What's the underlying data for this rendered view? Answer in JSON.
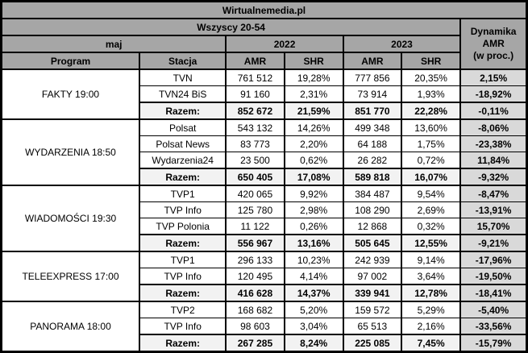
{
  "header": {
    "source": "Wirtualnemedia.pl",
    "target_group": "Wszyscy 20-54",
    "month": "maj",
    "year_2022": "2022",
    "year_2023": "2023",
    "col_program": "Program",
    "col_station": "Stacja",
    "col_amr": "AMR",
    "col_shr": "SHR",
    "dynamics": "Dynamika\nAMR\n(w proc.)"
  },
  "total_label": "Razem:",
  "colors": {
    "header_bg": "#a6a6a6",
    "total_bg": "#f2f2f2",
    "dynamics_bg": "#d9d9d9",
    "cell_bg": "#ffffff",
    "border": "#000000"
  },
  "chart_data": {
    "type": "table",
    "title": "Wirtualnemedia.pl",
    "subtitle": "Wszyscy 20-54, maj, 2022 vs 2023",
    "columns": [
      "Program",
      "Stacja",
      "AMR 2022",
      "SHR 2022",
      "AMR 2023",
      "SHR 2023",
      "Dynamika AMR (w proc.)"
    ],
    "groups": [
      {
        "program": "FAKTY 19:00",
        "rows": [
          {
            "station": "TVN",
            "amr2022": "761 512",
            "shr2022": "19,28%",
            "amr2023": "777 856",
            "shr2023": "20,35%",
            "dynamics": "2,15%"
          },
          {
            "station": "TVN24 BiS",
            "amr2022": "91 160",
            "shr2022": "2,31%",
            "amr2023": "73 914",
            "shr2023": "1,93%",
            "dynamics": "-18,92%"
          }
        ],
        "total": {
          "amr2022": "852 672",
          "shr2022": "21,59%",
          "amr2023": "851 770",
          "shr2023": "22,28%",
          "dynamics": "-0,11%"
        }
      },
      {
        "program": "WYDARZENIA 18:50",
        "rows": [
          {
            "station": "Polsat",
            "amr2022": "543 132",
            "shr2022": "14,26%",
            "amr2023": "499 348",
            "shr2023": "13,60%",
            "dynamics": "-8,06%"
          },
          {
            "station": "Polsat News",
            "amr2022": "83 773",
            "shr2022": "2,20%",
            "amr2023": "64 188",
            "shr2023": "1,75%",
            "dynamics": "-23,38%"
          },
          {
            "station": "Wydarzenia24",
            "amr2022": "23 500",
            "shr2022": "0,62%",
            "amr2023": "26 282",
            "shr2023": "0,72%",
            "dynamics": "11,84%"
          }
        ],
        "total": {
          "amr2022": "650 405",
          "shr2022": "17,08%",
          "amr2023": "589 818",
          "shr2023": "16,07%",
          "dynamics": "-9,32%"
        }
      },
      {
        "program": "WIADOMOŚCI 19:30",
        "rows": [
          {
            "station": "TVP1",
            "amr2022": "420 065",
            "shr2022": "9,92%",
            "amr2023": "384 487",
            "shr2023": "9,54%",
            "dynamics": "-8,47%"
          },
          {
            "station": "TVP Info",
            "amr2022": "125 780",
            "shr2022": "2,98%",
            "amr2023": "108 290",
            "shr2023": "2,69%",
            "dynamics": "-13,91%"
          },
          {
            "station": "TVP Polonia",
            "amr2022": "11 122",
            "shr2022": "0,26%",
            "amr2023": "12 868",
            "shr2023": "0,32%",
            "dynamics": "15,70%"
          }
        ],
        "total": {
          "amr2022": "556 967",
          "shr2022": "13,16%",
          "amr2023": "505 645",
          "shr2023": "12,55%",
          "dynamics": "-9,21%"
        }
      },
      {
        "program": "TELEEXPRESS 17:00",
        "rows": [
          {
            "station": "TVP1",
            "amr2022": "296 133",
            "shr2022": "10,23%",
            "amr2023": "242 939",
            "shr2023": "9,14%",
            "dynamics": "-17,96%"
          },
          {
            "station": "TVP Info",
            "amr2022": "120 495",
            "shr2022": "4,14%",
            "amr2023": "97 002",
            "shr2023": "3,64%",
            "dynamics": "-19,50%"
          }
        ],
        "total": {
          "amr2022": "416 628",
          "shr2022": "14,37%",
          "amr2023": "339 941",
          "shr2023": "12,78%",
          "dynamics": "-18,41%"
        }
      },
      {
        "program": "PANORAMA 18:00",
        "rows": [
          {
            "station": "TVP2",
            "amr2022": "168 682",
            "shr2022": "5,20%",
            "amr2023": "159 572",
            "shr2023": "5,29%",
            "dynamics": "-5,40%"
          },
          {
            "station": "TVP Info",
            "amr2022": "98 603",
            "shr2022": "3,04%",
            "amr2023": "65 513",
            "shr2023": "2,16%",
            "dynamics": "-33,56%"
          }
        ],
        "total": {
          "amr2022": "267 285",
          "shr2022": "8,24%",
          "amr2023": "225 085",
          "shr2023": "7,45%",
          "dynamics": "-15,79%"
        }
      }
    ]
  }
}
